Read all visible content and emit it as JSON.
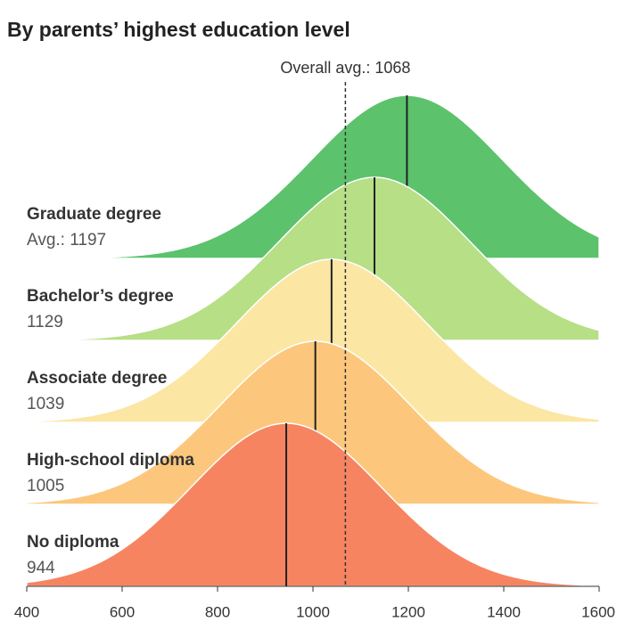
{
  "chart_data": {
    "type": "ridgeline",
    "title": "By parents’ highest education level",
    "overall": {
      "value": 1068,
      "label": "Overall avg.: 1068"
    },
    "categories": [
      "Graduate degree",
      "Bachelor’s degree",
      "Associate degree",
      "High-school diploma",
      "No diploma"
    ],
    "values": [
      1197,
      1129,
      1039,
      1005,
      944
    ],
    "value_labels": [
      "Avg.: 1197",
      "1129",
      "1039",
      "1005",
      "944"
    ],
    "colors": [
      "#5cc26c",
      "#b6df86",
      "#fbe6a4",
      "#fcc77c",
      "#f78461"
    ],
    "sd": 200,
    "xlim": [
      400,
      1600
    ],
    "xticks": [
      400,
      600,
      800,
      1000,
      1200,
      1400,
      1600
    ]
  }
}
